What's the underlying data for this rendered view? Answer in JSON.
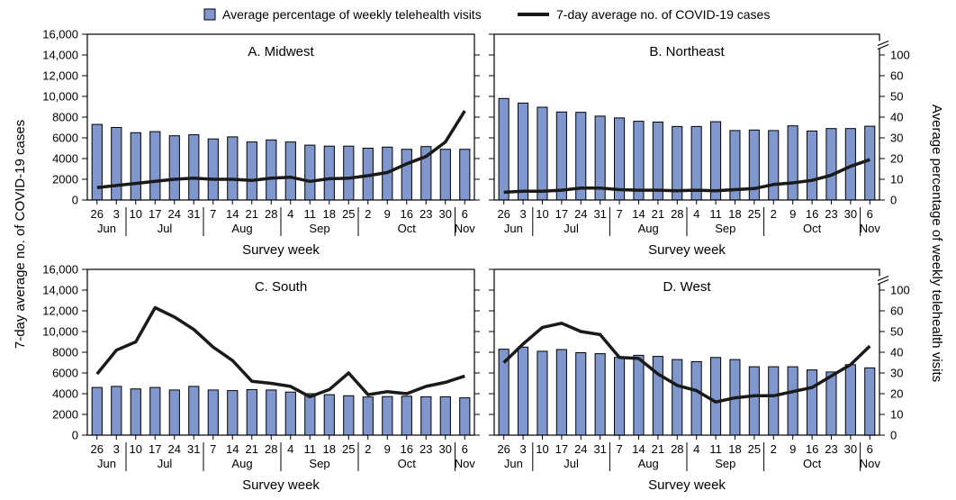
{
  "legend": {
    "bar_label": "Average percentage of weekly telehealth visits",
    "line_label": "7-day average no. of COVID-19 cases"
  },
  "left_axis_label": "7-day average no. of COVID-19 cases",
  "right_axis_label": "Average percentage of weekly telehealth visits",
  "colors": {
    "bar_fill": "#7f97cd",
    "bar_stroke": "#000000",
    "line": "#1a1a1a"
  },
  "chart_data": [
    {
      "type": "bar",
      "panel": "A",
      "title": "A. Midwest",
      "xlabel": "Survey week",
      "categories": [
        "26",
        "3",
        "10",
        "17",
        "24",
        "31",
        "7",
        "14",
        "21",
        "28",
        "4",
        "11",
        "18",
        "25",
        "2",
        "9",
        "16",
        "23",
        "30",
        "6"
      ],
      "months": [
        {
          "label": "Jun",
          "start": 0,
          "end": 1
        },
        {
          "label": "Jul",
          "start": 2,
          "end": 5
        },
        {
          "label": "Aug",
          "start": 6,
          "end": 9
        },
        {
          "label": "Sep",
          "start": 10,
          "end": 13
        },
        {
          "label": "Oct",
          "start": 14,
          "end": 18
        },
        {
          "label": "Nov",
          "start": 19,
          "end": 19
        }
      ],
      "left_axis": {
        "ylim": [
          0,
          16000
        ],
        "ticks": [
          "0",
          "2000",
          "4000",
          "6000",
          "8000",
          "10,000",
          "12,000",
          "14,000",
          "16,000"
        ],
        "show_labels": true
      },
      "right_axis": {
        "ticks": [
          "0",
          "10",
          "20",
          "30",
          "40",
          "50",
          "60",
          "100"
        ],
        "show_labels": false
      },
      "series": [
        {
          "name": "Average percentage of weekly telehealth visits",
          "kind": "bar",
          "axis": "right",
          "values": [
            36.5,
            35.0,
            32.5,
            33.0,
            31.0,
            31.5,
            29.5,
            30.5,
            28.0,
            29.0,
            28.0,
            26.5,
            26.0,
            26.0,
            25.0,
            25.5,
            24.5,
            25.8,
            24.5,
            24.5
          ]
        },
        {
          "name": "7-day average no. of COVID-19 cases",
          "kind": "line",
          "axis": "left",
          "values": [
            1200,
            1400,
            1600,
            1800,
            2000,
            2100,
            2000,
            2000,
            1900,
            2100,
            2200,
            1800,
            2050,
            2100,
            2350,
            2650,
            3500,
            4200,
            5600,
            8600
          ]
        }
      ]
    },
    {
      "type": "bar",
      "panel": "B",
      "title": "B. Northeast",
      "xlabel": "Survey week",
      "categories": [
        "26",
        "3",
        "10",
        "17",
        "24",
        "31",
        "7",
        "14",
        "21",
        "28",
        "4",
        "11",
        "18",
        "25",
        "2",
        "9",
        "16",
        "23",
        "30",
        "6"
      ],
      "months": [
        {
          "label": "Jun",
          "start": 0,
          "end": 1
        },
        {
          "label": "Jul",
          "start": 2,
          "end": 5
        },
        {
          "label": "Aug",
          "start": 6,
          "end": 9
        },
        {
          "label": "Sep",
          "start": 10,
          "end": 13
        },
        {
          "label": "Oct",
          "start": 14,
          "end": 18
        },
        {
          "label": "Nov",
          "start": 19,
          "end": 19
        }
      ],
      "left_axis": {
        "ylim": [
          0,
          16000
        ],
        "ticks": [
          "0",
          "2000",
          "4000",
          "6000",
          "8000",
          "10,000",
          "12,000",
          "14,000",
          "16,000"
        ],
        "show_labels": false
      },
      "right_axis": {
        "ticks": [
          "0",
          "10",
          "20",
          "30",
          "40",
          "50",
          "60",
          "100"
        ],
        "show_labels": true
      },
      "series": [
        {
          "name": "Average percentage of weekly telehealth visits",
          "kind": "bar",
          "axis": "right",
          "values": [
            49.0,
            46.8,
            44.8,
            42.5,
            42.3,
            40.5,
            39.6,
            38.0,
            37.6,
            35.5,
            35.5,
            37.8,
            33.5,
            33.8,
            33.5,
            35.8,
            33.3,
            34.5,
            34.5,
            35.6
          ]
        },
        {
          "name": "7-day average no. of COVID-19 cases",
          "kind": "line",
          "axis": "left",
          "values": [
            750,
            850,
            850,
            950,
            1150,
            1150,
            1000,
            950,
            950,
            900,
            950,
            900,
            1000,
            1100,
            1500,
            1650,
            1900,
            2400,
            3250,
            3900
          ]
        }
      ]
    },
    {
      "type": "bar",
      "panel": "C",
      "title": "C. South",
      "xlabel": "Survey week",
      "categories": [
        "26",
        "3",
        "10",
        "17",
        "24",
        "31",
        "7",
        "14",
        "21",
        "28",
        "4",
        "11",
        "18",
        "25",
        "2",
        "9",
        "16",
        "23",
        "30",
        "6"
      ],
      "months": [
        {
          "label": "Jun",
          "start": 0,
          "end": 1
        },
        {
          "label": "Jul",
          "start": 2,
          "end": 5
        },
        {
          "label": "Aug",
          "start": 6,
          "end": 9
        },
        {
          "label": "Sep",
          "start": 10,
          "end": 13
        },
        {
          "label": "Oct",
          "start": 14,
          "end": 18
        },
        {
          "label": "Nov",
          "start": 19,
          "end": 19
        }
      ],
      "left_axis": {
        "ylim": [
          0,
          16000
        ],
        "ticks": [
          "0",
          "2000",
          "4000",
          "6000",
          "8000",
          "10,000",
          "12,000",
          "14,000",
          "16,000"
        ],
        "show_labels": true
      },
      "right_axis": {
        "ticks": [
          "0",
          "10",
          "20",
          "30",
          "40",
          "50",
          "60",
          "100"
        ],
        "show_labels": false
      },
      "series": [
        {
          "name": "Average percentage of weekly telehealth visits",
          "kind": "bar",
          "axis": "right",
          "values": [
            23.0,
            23.5,
            22.3,
            23.0,
            21.8,
            23.5,
            21.8,
            21.5,
            22.0,
            21.8,
            20.8,
            20.0,
            19.5,
            19.0,
            18.4,
            18.6,
            18.8,
            18.5,
            18.5,
            18.0
          ]
        },
        {
          "name": "7-day average no. of COVID-19 cases",
          "kind": "line",
          "axis": "left",
          "values": [
            5900,
            8200,
            9000,
            12300,
            11400,
            10200,
            8500,
            7200,
            5200,
            5000,
            4700,
            3700,
            4400,
            6000,
            3900,
            4200,
            4000,
            4700,
            5100,
            5700
          ]
        }
      ]
    },
    {
      "type": "bar",
      "panel": "D",
      "title": "D. West",
      "xlabel": "Survey week",
      "categories": [
        "26",
        "3",
        "10",
        "17",
        "24",
        "31",
        "7",
        "14",
        "21",
        "28",
        "4",
        "11",
        "18",
        "25",
        "2",
        "9",
        "16",
        "23",
        "30",
        "6"
      ],
      "months": [
        {
          "label": "Jun",
          "start": 0,
          "end": 1
        },
        {
          "label": "Jul",
          "start": 2,
          "end": 5
        },
        {
          "label": "Aug",
          "start": 6,
          "end": 9
        },
        {
          "label": "Sep",
          "start": 10,
          "end": 13
        },
        {
          "label": "Oct",
          "start": 14,
          "end": 18
        },
        {
          "label": "Nov",
          "start": 19,
          "end": 19
        }
      ],
      "left_axis": {
        "ylim": [
          0,
          16000
        ],
        "ticks": [
          "0",
          "2000",
          "4000",
          "6000",
          "8000",
          "10,000",
          "12,000",
          "14,000",
          "16,000"
        ],
        "show_labels": false
      },
      "right_axis": {
        "ticks": [
          "0",
          "10",
          "20",
          "30",
          "40",
          "50",
          "60",
          "100"
        ],
        "show_labels": true
      },
      "series": [
        {
          "name": "Average percentage of weekly telehealth visits",
          "kind": "bar",
          "axis": "right",
          "values": [
            41.5,
            42.5,
            40.5,
            41.3,
            39.8,
            39.3,
            37.5,
            38.5,
            38.0,
            36.5,
            35.5,
            37.5,
            36.5,
            33.0,
            33.0,
            33.0,
            31.5,
            30.5,
            34.0,
            32.5
          ]
        },
        {
          "name": "7-day average no. of COVID-19 cases",
          "kind": "line",
          "axis": "left",
          "values": [
            7000,
            8800,
            10400,
            10800,
            10000,
            9700,
            7500,
            7400,
            5900,
            4800,
            4300,
            3200,
            3600,
            3800,
            3800,
            4200,
            4600,
            5700,
            6800,
            8600
          ]
        }
      ]
    }
  ]
}
